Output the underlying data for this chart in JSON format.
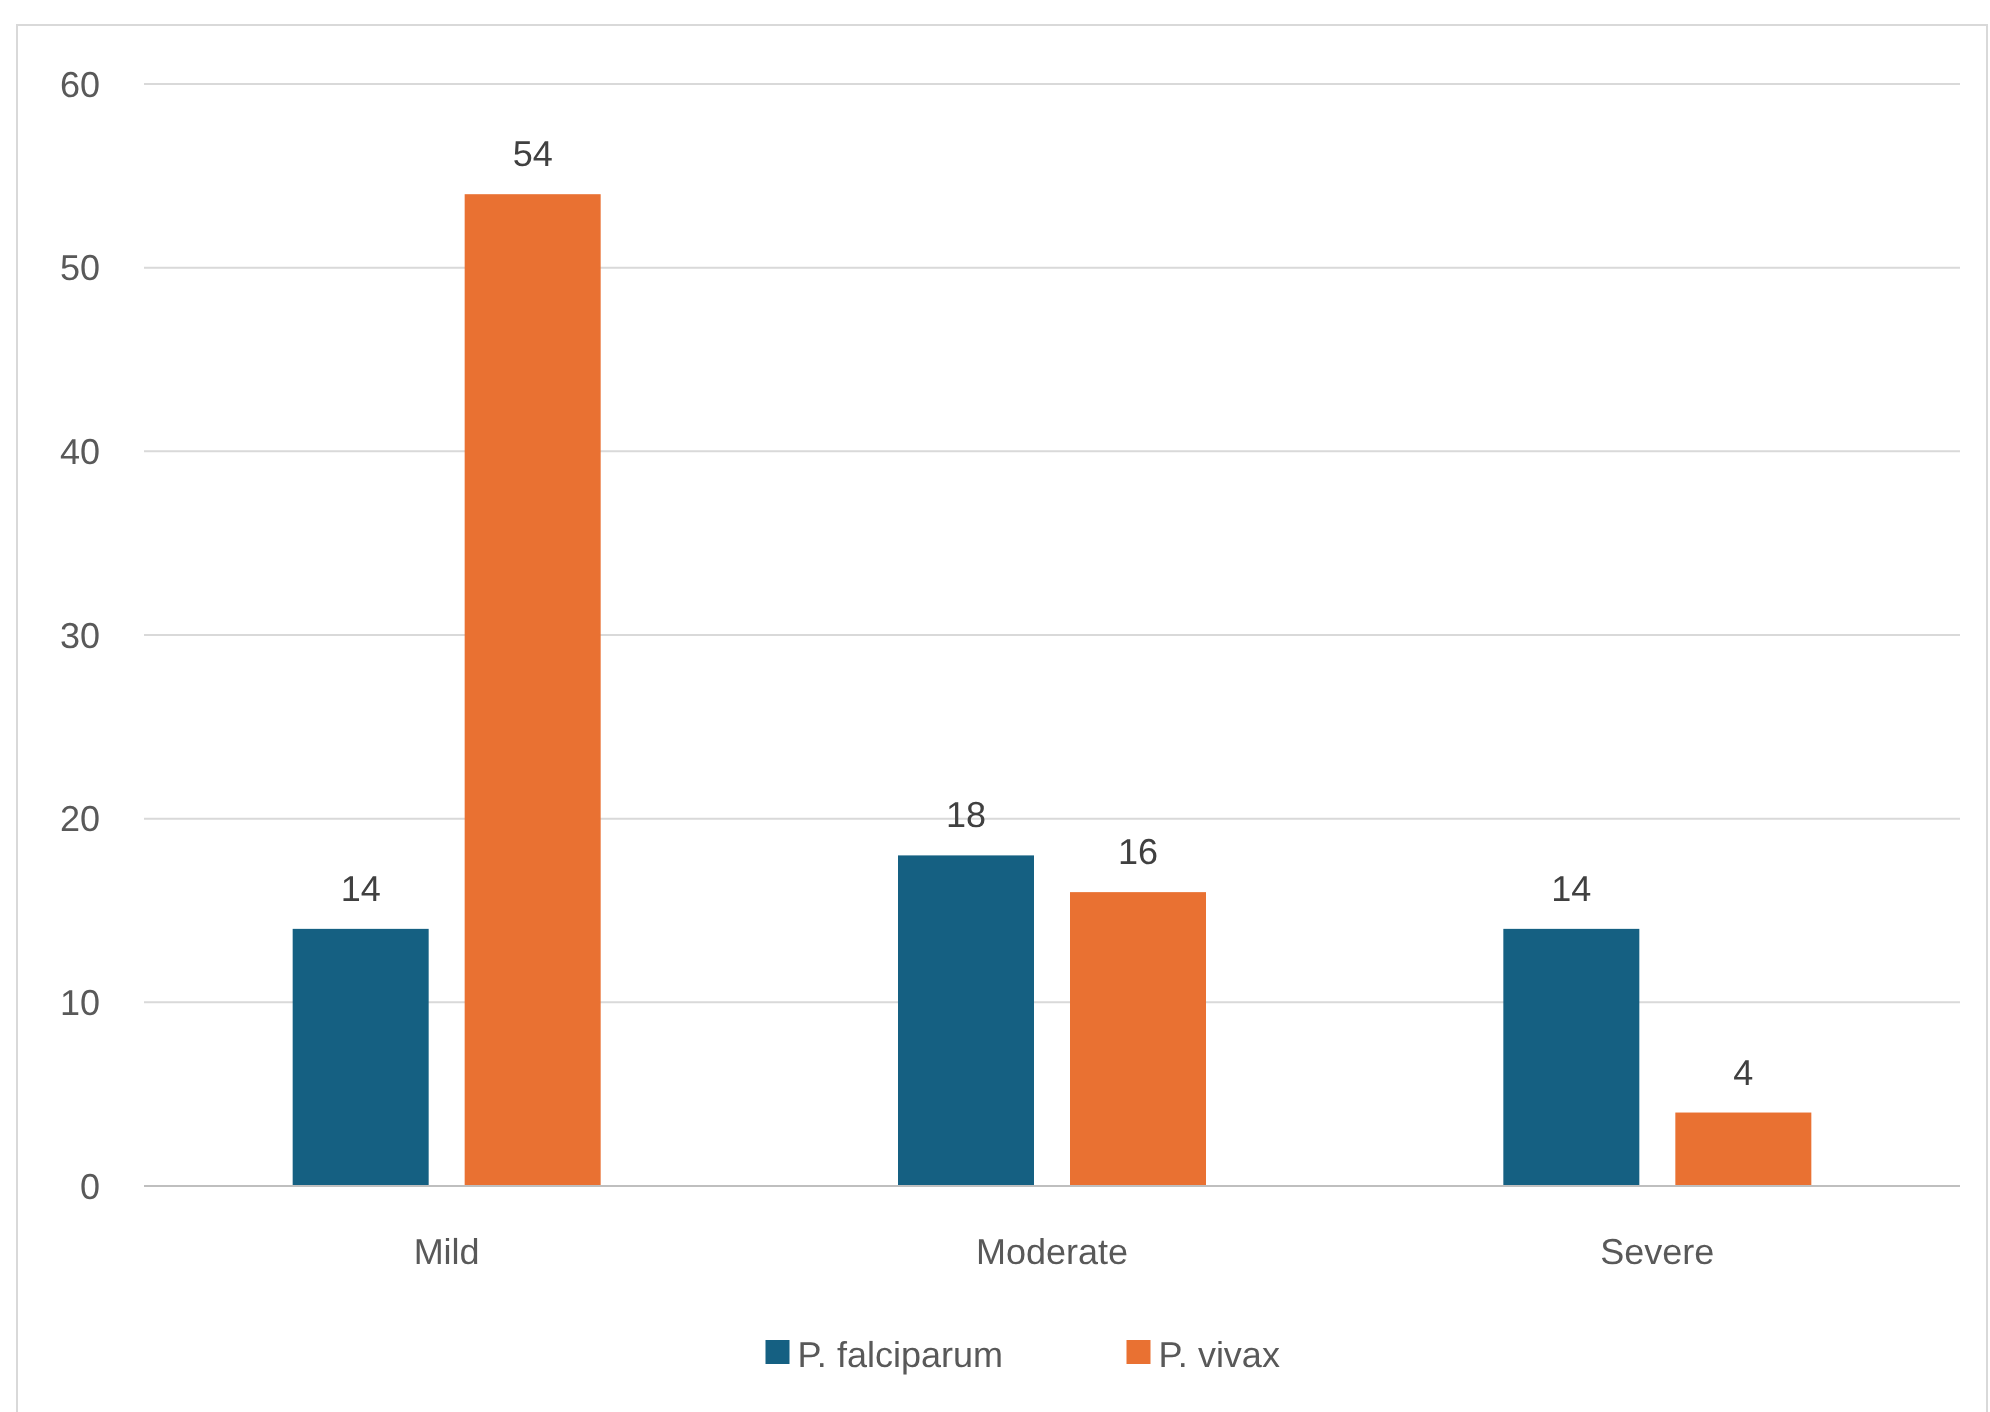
{
  "chart_data": {
    "type": "bar",
    "categories": [
      "Mild",
      "Moderate",
      "Severe"
    ],
    "series": [
      {
        "name": "P. falciparum",
        "color": "#156082",
        "values": [
          14,
          18,
          14
        ]
      },
      {
        "name": "P. vivax",
        "color": "#e97132",
        "values": [
          54,
          16,
          4
        ]
      }
    ],
    "ylim": [
      0,
      60
    ],
    "yticks": [
      0,
      10,
      20,
      30,
      40,
      50,
      60
    ],
    "grid": "y",
    "legend": "bottom",
    "data_labels": true
  }
}
